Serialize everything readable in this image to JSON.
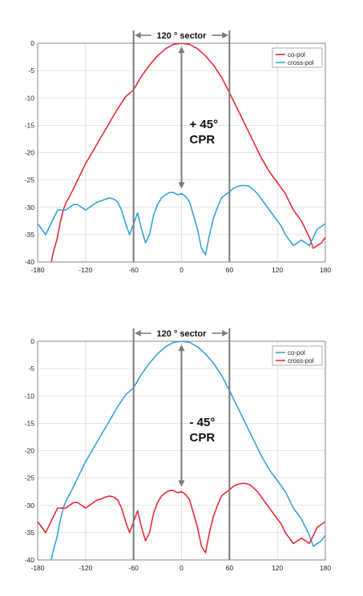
{
  "chart_data": [
    {
      "type": "line",
      "xlim": [
        -180,
        180
      ],
      "ylim": [
        -40,
        0
      ],
      "x_ticks": [
        -180,
        -120,
        -60,
        0,
        60,
        120,
        180
      ],
      "y_ticks": [
        0,
        -5,
        -10,
        -15,
        -20,
        -25,
        -30,
        -35,
        -40
      ],
      "x_tick_labels": [
        "-180",
        "-120",
        "-60",
        "0",
        "60",
        "120",
        "180"
      ],
      "y_tick_labels": [
        "0",
        "-5",
        "-10",
        "-15",
        "-20",
        "-25",
        "-30",
        "-35",
        "-40"
      ],
      "sector_lines": [
        -60,
        60
      ],
      "sector_label": "120 °  sector",
      "annotation_line1": "+ 45°",
      "annotation_line2": "CPR",
      "legend_position": "top-right",
      "series": [
        {
          "name": "co-pol",
          "color": "#e8202c",
          "x": [
            -163,
            -160,
            -156,
            -152,
            -148,
            -144,
            -140,
            -135,
            -130,
            -120,
            -110,
            -100,
            -90,
            -80,
            -70,
            -60,
            -50,
            -40,
            -30,
            -20,
            -10,
            0,
            10,
            20,
            30,
            40,
            50,
            60,
            70,
            80,
            90,
            100,
            110,
            120,
            130,
            140,
            150,
            160,
            165,
            170,
            175,
            180
          ],
          "y": [
            -40,
            -38,
            -36,
            -33,
            -30.5,
            -29,
            -28,
            -26.5,
            -25,
            -22,
            -19.5,
            -17,
            -14.5,
            -12,
            -9.8,
            -8.5,
            -6,
            -4,
            -2.3,
            -1.0,
            -0.2,
            0,
            -0.2,
            -1.0,
            -2.3,
            -4,
            -6.2,
            -9,
            -12,
            -15,
            -18,
            -21,
            -23.5,
            -25.5,
            -27.5,
            -30.5,
            -32.5,
            -35.5,
            -37.5,
            -37,
            -36.5,
            -35.5
          ]
        },
        {
          "name": "cross-pol",
          "color": "#2a9fd6",
          "x": [
            -180,
            -175,
            -170,
            -165,
            -160,
            -155,
            -150,
            -145,
            -140,
            -135,
            -130,
            -125,
            -120,
            -115,
            -110,
            -105,
            -100,
            -95,
            -90,
            -85,
            -80,
            -75,
            -70,
            -65,
            -60,
            -55,
            -50,
            -45,
            -40,
            -35,
            -30,
            -25,
            -20,
            -15,
            -10,
            -5,
            0,
            5,
            10,
            15,
            20,
            25,
            30,
            35,
            40,
            45,
            50,
            55,
            60,
            65,
            70,
            75,
            80,
            85,
            90,
            95,
            100,
            105,
            110,
            115,
            120,
            125,
            130,
            135,
            140,
            145,
            150,
            155,
            160,
            165,
            170,
            175,
            180
          ],
          "y": [
            -33,
            -34,
            -35,
            -33.5,
            -32,
            -30.5,
            -30.5,
            -30.5,
            -30,
            -29.5,
            -29.5,
            -30,
            -30.5,
            -30,
            -29.5,
            -29,
            -28.8,
            -28.5,
            -28.3,
            -28.5,
            -29,
            -30.5,
            -33,
            -35,
            -33,
            -31,
            -34,
            -36.5,
            -35,
            -31.5,
            -29.5,
            -28.3,
            -27.7,
            -27.3,
            -27.3,
            -27.7,
            -27.5,
            -28,
            -29,
            -31.5,
            -34,
            -37.5,
            -38.7,
            -35,
            -32,
            -30,
            -28.3,
            -27.7,
            -27.2,
            -26.5,
            -26.2,
            -26,
            -26,
            -26.2,
            -26.8,
            -27.5,
            -28.5,
            -29.5,
            -30.5,
            -31.5,
            -32.5,
            -33.5,
            -35,
            -36,
            -37,
            -36.5,
            -36,
            -36.5,
            -37,
            -35.5,
            -34,
            -33.5,
            -33
          ]
        }
      ]
    },
    {
      "type": "line",
      "xlim": [
        -180,
        180
      ],
      "ylim": [
        -40,
        0
      ],
      "x_ticks": [
        -180,
        -120,
        -60,
        0,
        60,
        120,
        180
      ],
      "y_ticks": [
        0,
        -5,
        -10,
        -15,
        -20,
        -25,
        -30,
        -35,
        -40
      ],
      "x_tick_labels": [
        "-180",
        "-120",
        "-60",
        "0",
        "60",
        "120",
        "180"
      ],
      "y_tick_labels": [
        "0",
        "-5",
        "-10",
        "-15",
        "-20",
        "-25",
        "-30",
        "-35",
        "-40"
      ],
      "sector_lines": [
        -60,
        60
      ],
      "sector_label": "120 °  sector",
      "annotation_line1": "- 45°",
      "annotation_line2": "CPR",
      "legend_position": "top-right",
      "series": [
        {
          "name": "co-pol",
          "color": "#2a9fd6",
          "x": [
            -163,
            -160,
            -156,
            -152,
            -148,
            -144,
            -140,
            -135,
            -130,
            -120,
            -110,
            -100,
            -90,
            -80,
            -70,
            -60,
            -50,
            -40,
            -30,
            -20,
            -10,
            0,
            10,
            20,
            30,
            40,
            50,
            60,
            70,
            80,
            90,
            100,
            110,
            120,
            130,
            140,
            150,
            160,
            165,
            170,
            175,
            180
          ],
          "y": [
            -40,
            -38,
            -36,
            -33,
            -30.5,
            -29,
            -28,
            -26.5,
            -25,
            -22,
            -19.5,
            -17,
            -14.5,
            -12,
            -9.8,
            -8.5,
            -6,
            -4,
            -2.3,
            -1.0,
            -0.2,
            0,
            -0.2,
            -1.0,
            -2.3,
            -4,
            -6.2,
            -9,
            -12,
            -15,
            -18,
            -21,
            -23.5,
            -25.5,
            -27.5,
            -30.5,
            -32.5,
            -35.5,
            -37.5,
            -37,
            -36.5,
            -35.5
          ]
        },
        {
          "name": "cross-pol",
          "color": "#e8202c",
          "x": [
            -180,
            -175,
            -170,
            -165,
            -160,
            -155,
            -150,
            -145,
            -140,
            -135,
            -130,
            -125,
            -120,
            -115,
            -110,
            -105,
            -100,
            -95,
            -90,
            -85,
            -80,
            -75,
            -70,
            -65,
            -60,
            -55,
            -50,
            -45,
            -40,
            -35,
            -30,
            -25,
            -20,
            -15,
            -10,
            -5,
            0,
            5,
            10,
            15,
            20,
            25,
            30,
            35,
            40,
            45,
            50,
            55,
            60,
            65,
            70,
            75,
            80,
            85,
            90,
            95,
            100,
            105,
            110,
            115,
            120,
            125,
            130,
            135,
            140,
            145,
            150,
            155,
            160,
            165,
            170,
            175,
            180
          ],
          "y": [
            -33,
            -34,
            -35,
            -33.5,
            -32,
            -30.5,
            -30.5,
            -30.5,
            -30,
            -29.5,
            -29.5,
            -30,
            -30.5,
            -30,
            -29.5,
            -29,
            -28.8,
            -28.5,
            -28.3,
            -28.5,
            -29,
            -30.5,
            -33,
            -35,
            -33,
            -31,
            -34,
            -36.5,
            -35,
            -31.5,
            -29.5,
            -28.3,
            -27.7,
            -27.3,
            -27.3,
            -27.7,
            -27.5,
            -28,
            -29,
            -31.5,
            -34,
            -37.5,
            -38.7,
            -35,
            -32,
            -30,
            -28.3,
            -27.7,
            -27.2,
            -26.5,
            -26.2,
            -26,
            -26,
            -26.2,
            -26.8,
            -27.5,
            -28.5,
            -29.5,
            -30.5,
            -31.5,
            -32.5,
            -33.5,
            -35,
            -36,
            -37,
            -36.5,
            -36,
            -36.5,
            -37,
            -35.5,
            -34,
            -33.5,
            -33
          ]
        }
      ]
    }
  ]
}
